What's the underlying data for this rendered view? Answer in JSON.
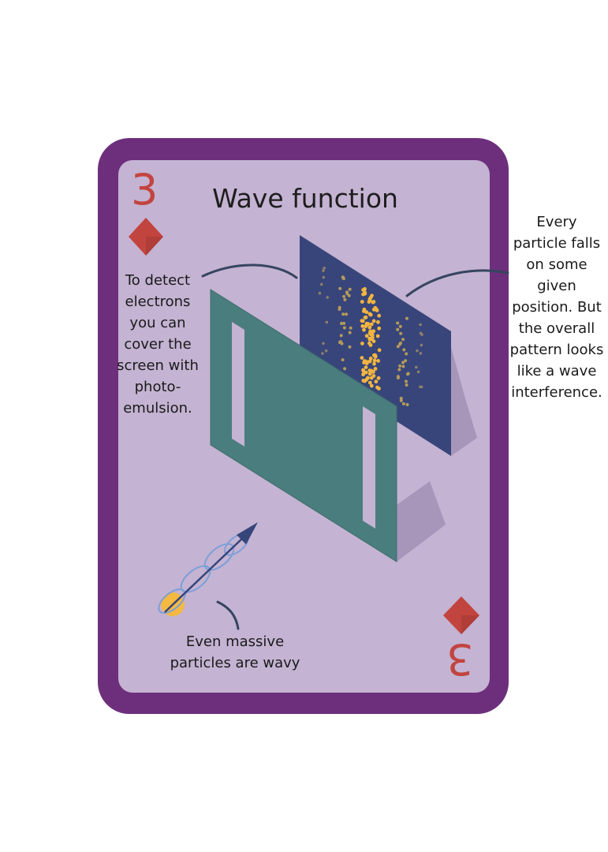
{
  "card": {
    "rank": "3",
    "rank_inverted": "3",
    "suit": "diamond",
    "title": "Wave function"
  },
  "annotations": {
    "left": "To detect electrons you can cover the screen with photo-emulsion.",
    "right": "Every particle falls on some given position. But the overall pattern looks like a wave interference.",
    "bottom": "Even massive particles are wavy"
  },
  "colors": {
    "card_border": "#6d2f7c",
    "card_face": "#c4b3d2",
    "suit": "#c2443f",
    "screen": "#38457a",
    "slit_plate": "#4a7d7d",
    "particle_hits": "#f2b540",
    "wave": "#7e9fd8",
    "arrow": "#36457a",
    "particle": "#f5b942"
  },
  "icons": {
    "suit_top": "diamond-suit-icon",
    "suit_bottom": "diamond-suit-icon",
    "particle": "particle-wave-icon"
  }
}
